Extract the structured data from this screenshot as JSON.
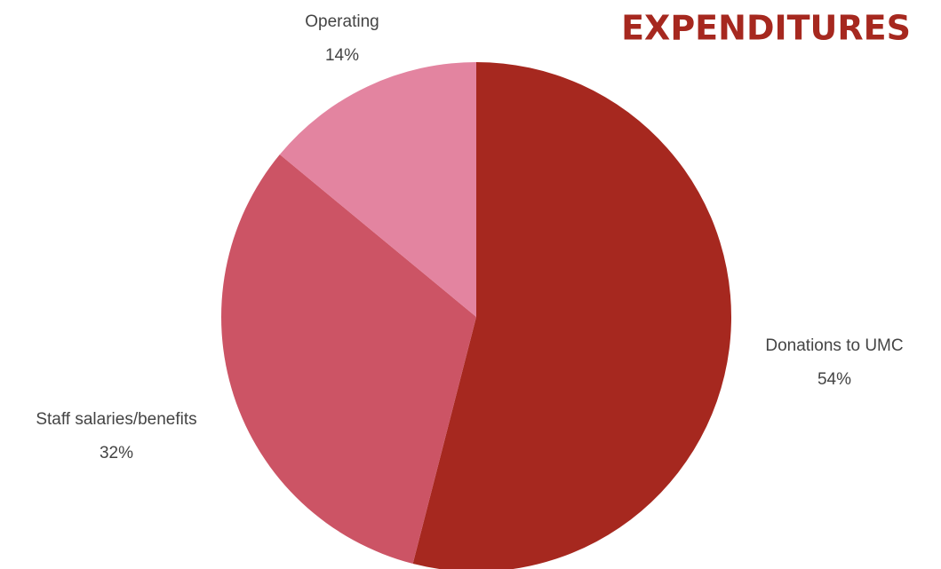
{
  "chart_data": {
    "type": "pie",
    "title": "EXPENDITURES",
    "categories": [
      "Donations to UMC",
      "Staff salaries/benefits",
      "Operating"
    ],
    "values": [
      54,
      32,
      14
    ],
    "value_labels": [
      "54%",
      "32%",
      "14%"
    ],
    "colors": [
      "#a6281f",
      "#cc5465",
      "#e384a0"
    ]
  }
}
